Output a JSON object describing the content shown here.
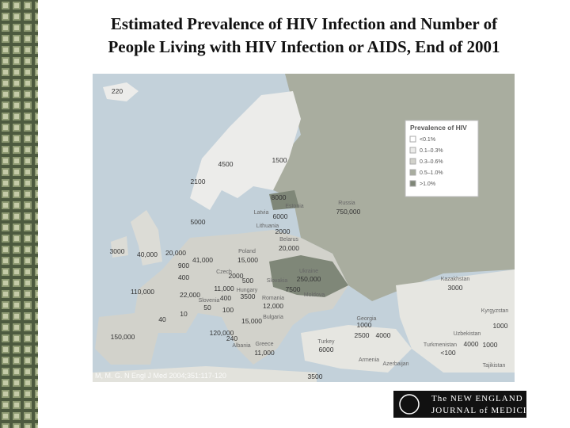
{
  "header": {
    "title_line1": "Estimated Prevalence of HIV Infection and Number of",
    "title_line2": "People Living with HIV Infection or AIDS, End of 2001"
  },
  "legend": {
    "title": "Prevalence of HIV",
    "items": [
      "<0.1%",
      "0.1–0.3%",
      "0.3–0.6%",
      "0.5–1.0%",
      ">1.0%"
    ]
  },
  "map_labels": [
    "220",
    "4500",
    "1500",
    "2100",
    "8000",
    "Estonia",
    "Latvia",
    "6000",
    "Lithuania",
    "2000",
    "Belarus",
    "20,000",
    "Russia",
    "750,000",
    "5000",
    "3000",
    "40,000",
    "20,000",
    "41,000",
    "Poland",
    "15,000",
    "Czech",
    "900",
    "400",
    "2000",
    "500",
    "Ukraine",
    "250,000",
    "Slovakia",
    "Hungary",
    "11,000",
    "110,000",
    "22,000",
    "Slovenia",
    "400",
    "3500",
    "7500",
    "Moldova",
    "Romania",
    "12,000",
    "50",
    "100",
    "Bulgaria",
    "15,000",
    "40",
    "10",
    "Kazakhstan",
    "3000",
    "Kyrgyzstan",
    "1000",
    "Uzbekistan",
    "Turkmenistan",
    "4000",
    "1000",
    "<100",
    "Tajikistan",
    "Georgia",
    "1000",
    "2500",
    "4000",
    "Armenia",
    "Azerbaijan",
    "Turkey",
    "6000",
    "3500",
    "150,000",
    "120,000",
    "Greece",
    "11,000",
    "Albania",
    "240"
  ],
  "citation": "M, M. G. N Engl J Med 2004;351:117-120",
  "logo": {
    "line1": "The NEW ENGLAND",
    "line2": "JOURNAL of MEDICINE"
  }
}
